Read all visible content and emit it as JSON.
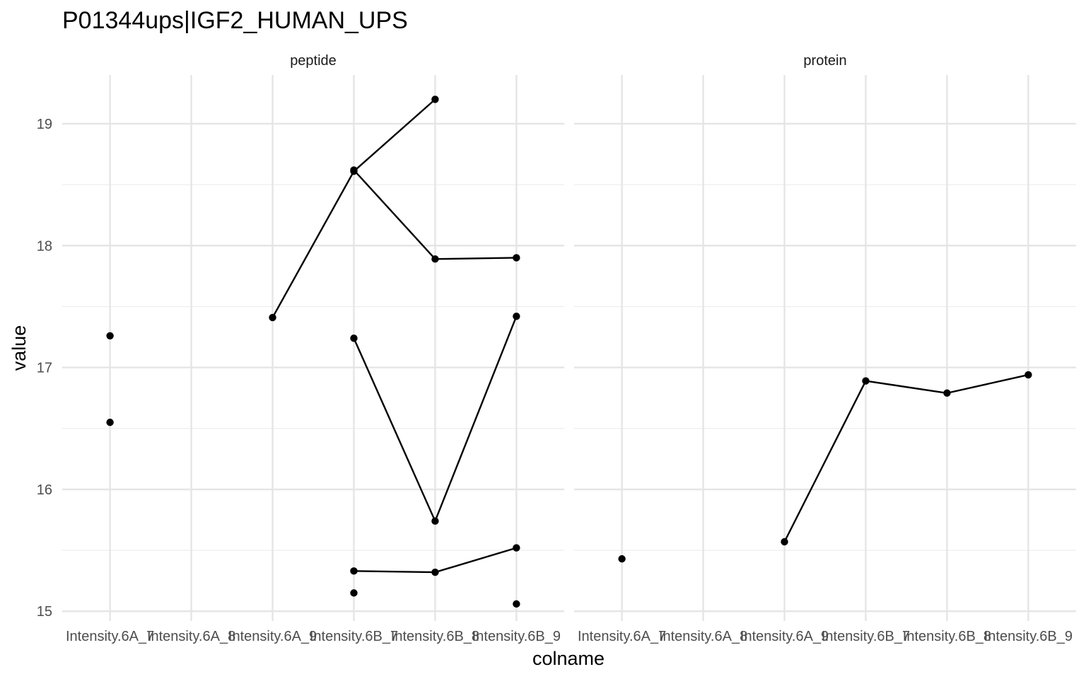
{
  "chart_data": {
    "type": "line",
    "title": "P01344ups|IGF2_HUMAN_UPS",
    "xlabel": "colname",
    "ylabel": "value",
    "categories": [
      "Intensity.6A_7",
      "Intensity.6A_8",
      "Intensity.6A_9",
      "Intensity.6B_7",
      "Intensity.6B_8",
      "Intensity.6B_9"
    ],
    "ylim": [
      14.92,
      19.4
    ],
    "yticks": [
      15,
      16,
      17,
      18,
      19
    ],
    "grid": true,
    "facets": [
      {
        "label": "peptide",
        "series": [
          {
            "values": [
              null,
              null,
              17.41,
              18.61,
              19.2,
              null
            ]
          },
          {
            "values": [
              null,
              null,
              null,
              18.62,
              17.89,
              17.9
            ]
          },
          {
            "values": [
              null,
              null,
              null,
              17.24,
              15.74,
              17.42
            ]
          },
          {
            "values": [
              null,
              null,
              null,
              15.33,
              15.32,
              15.52
            ]
          },
          {
            "values": [
              17.26,
              null,
              null,
              null,
              null,
              null
            ]
          },
          {
            "values": [
              16.55,
              null,
              null,
              null,
              null,
              null
            ]
          },
          {
            "values": [
              null,
              null,
              null,
              15.15,
              null,
              null
            ]
          },
          {
            "values": [
              null,
              null,
              null,
              null,
              null,
              15.06
            ]
          }
        ]
      },
      {
        "label": "protein",
        "series": [
          {
            "values": [
              15.43,
              null,
              15.57,
              16.89,
              16.79,
              16.94
            ]
          }
        ]
      }
    ]
  }
}
